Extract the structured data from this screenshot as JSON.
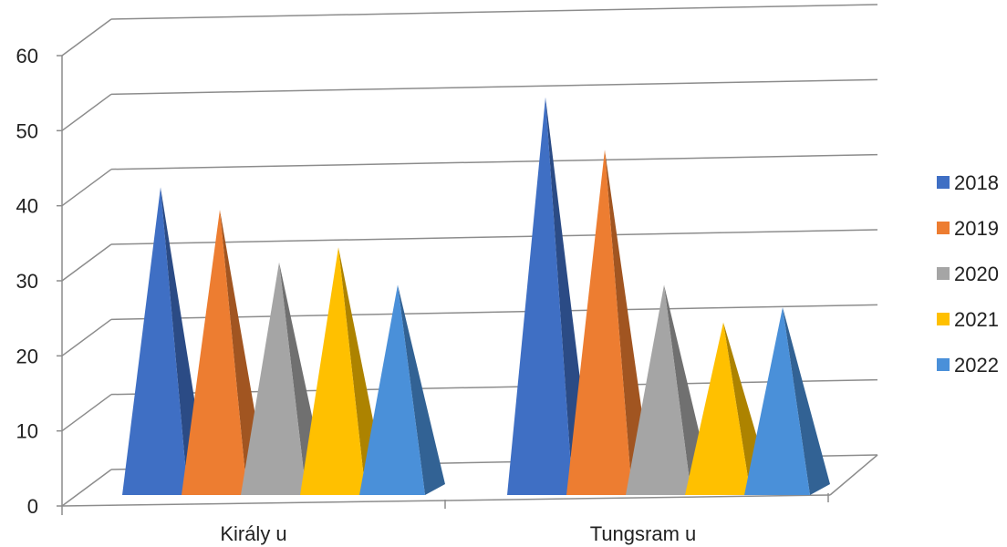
{
  "chart_data": {
    "type": "bar",
    "style": "3d-pyramid",
    "categories": [
      "Király u",
      "Tungsram u"
    ],
    "series": [
      {
        "name": "2018",
        "values": [
          41,
          53
        ],
        "color": "#3F6FC4"
      },
      {
        "name": "2019",
        "values": [
          38,
          46
        ],
        "color": "#ED7D31"
      },
      {
        "name": "2020",
        "values": [
          31,
          28
        ],
        "color": "#A5A5A5"
      },
      {
        "name": "2021",
        "values": [
          33,
          23
        ],
        "color": "#FFC000"
      },
      {
        "name": "2022",
        "values": [
          28,
          25
        ],
        "color": "#4A90D9"
      }
    ],
    "yticks": [
      "0",
      "10",
      "20",
      "30",
      "40",
      "50",
      "60"
    ],
    "ylim": [
      0,
      60
    ],
    "grid": true,
    "legend": "right"
  }
}
